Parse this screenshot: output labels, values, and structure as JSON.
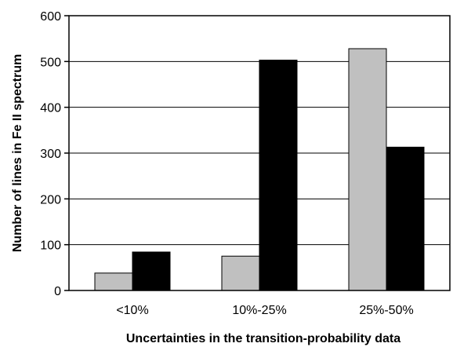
{
  "chart_data": {
    "type": "bar",
    "categories": [
      "<10%",
      "10%-25%",
      "25%-50%"
    ],
    "series": [
      {
        "values": [
          38,
          75,
          528
        ],
        "color": "#c0c0c0"
      },
      {
        "values": [
          84,
          503,
          313
        ],
        "color": "#000000"
      }
    ],
    "xlabel": "Uncertainties in the transition-probability data",
    "ylabel": "Number of lines in Fe II spectrum",
    "ylim": [
      0,
      600
    ],
    "yticks": [
      0,
      100,
      200,
      300,
      400,
      500,
      600
    ],
    "grid": true,
    "legend": "none"
  }
}
